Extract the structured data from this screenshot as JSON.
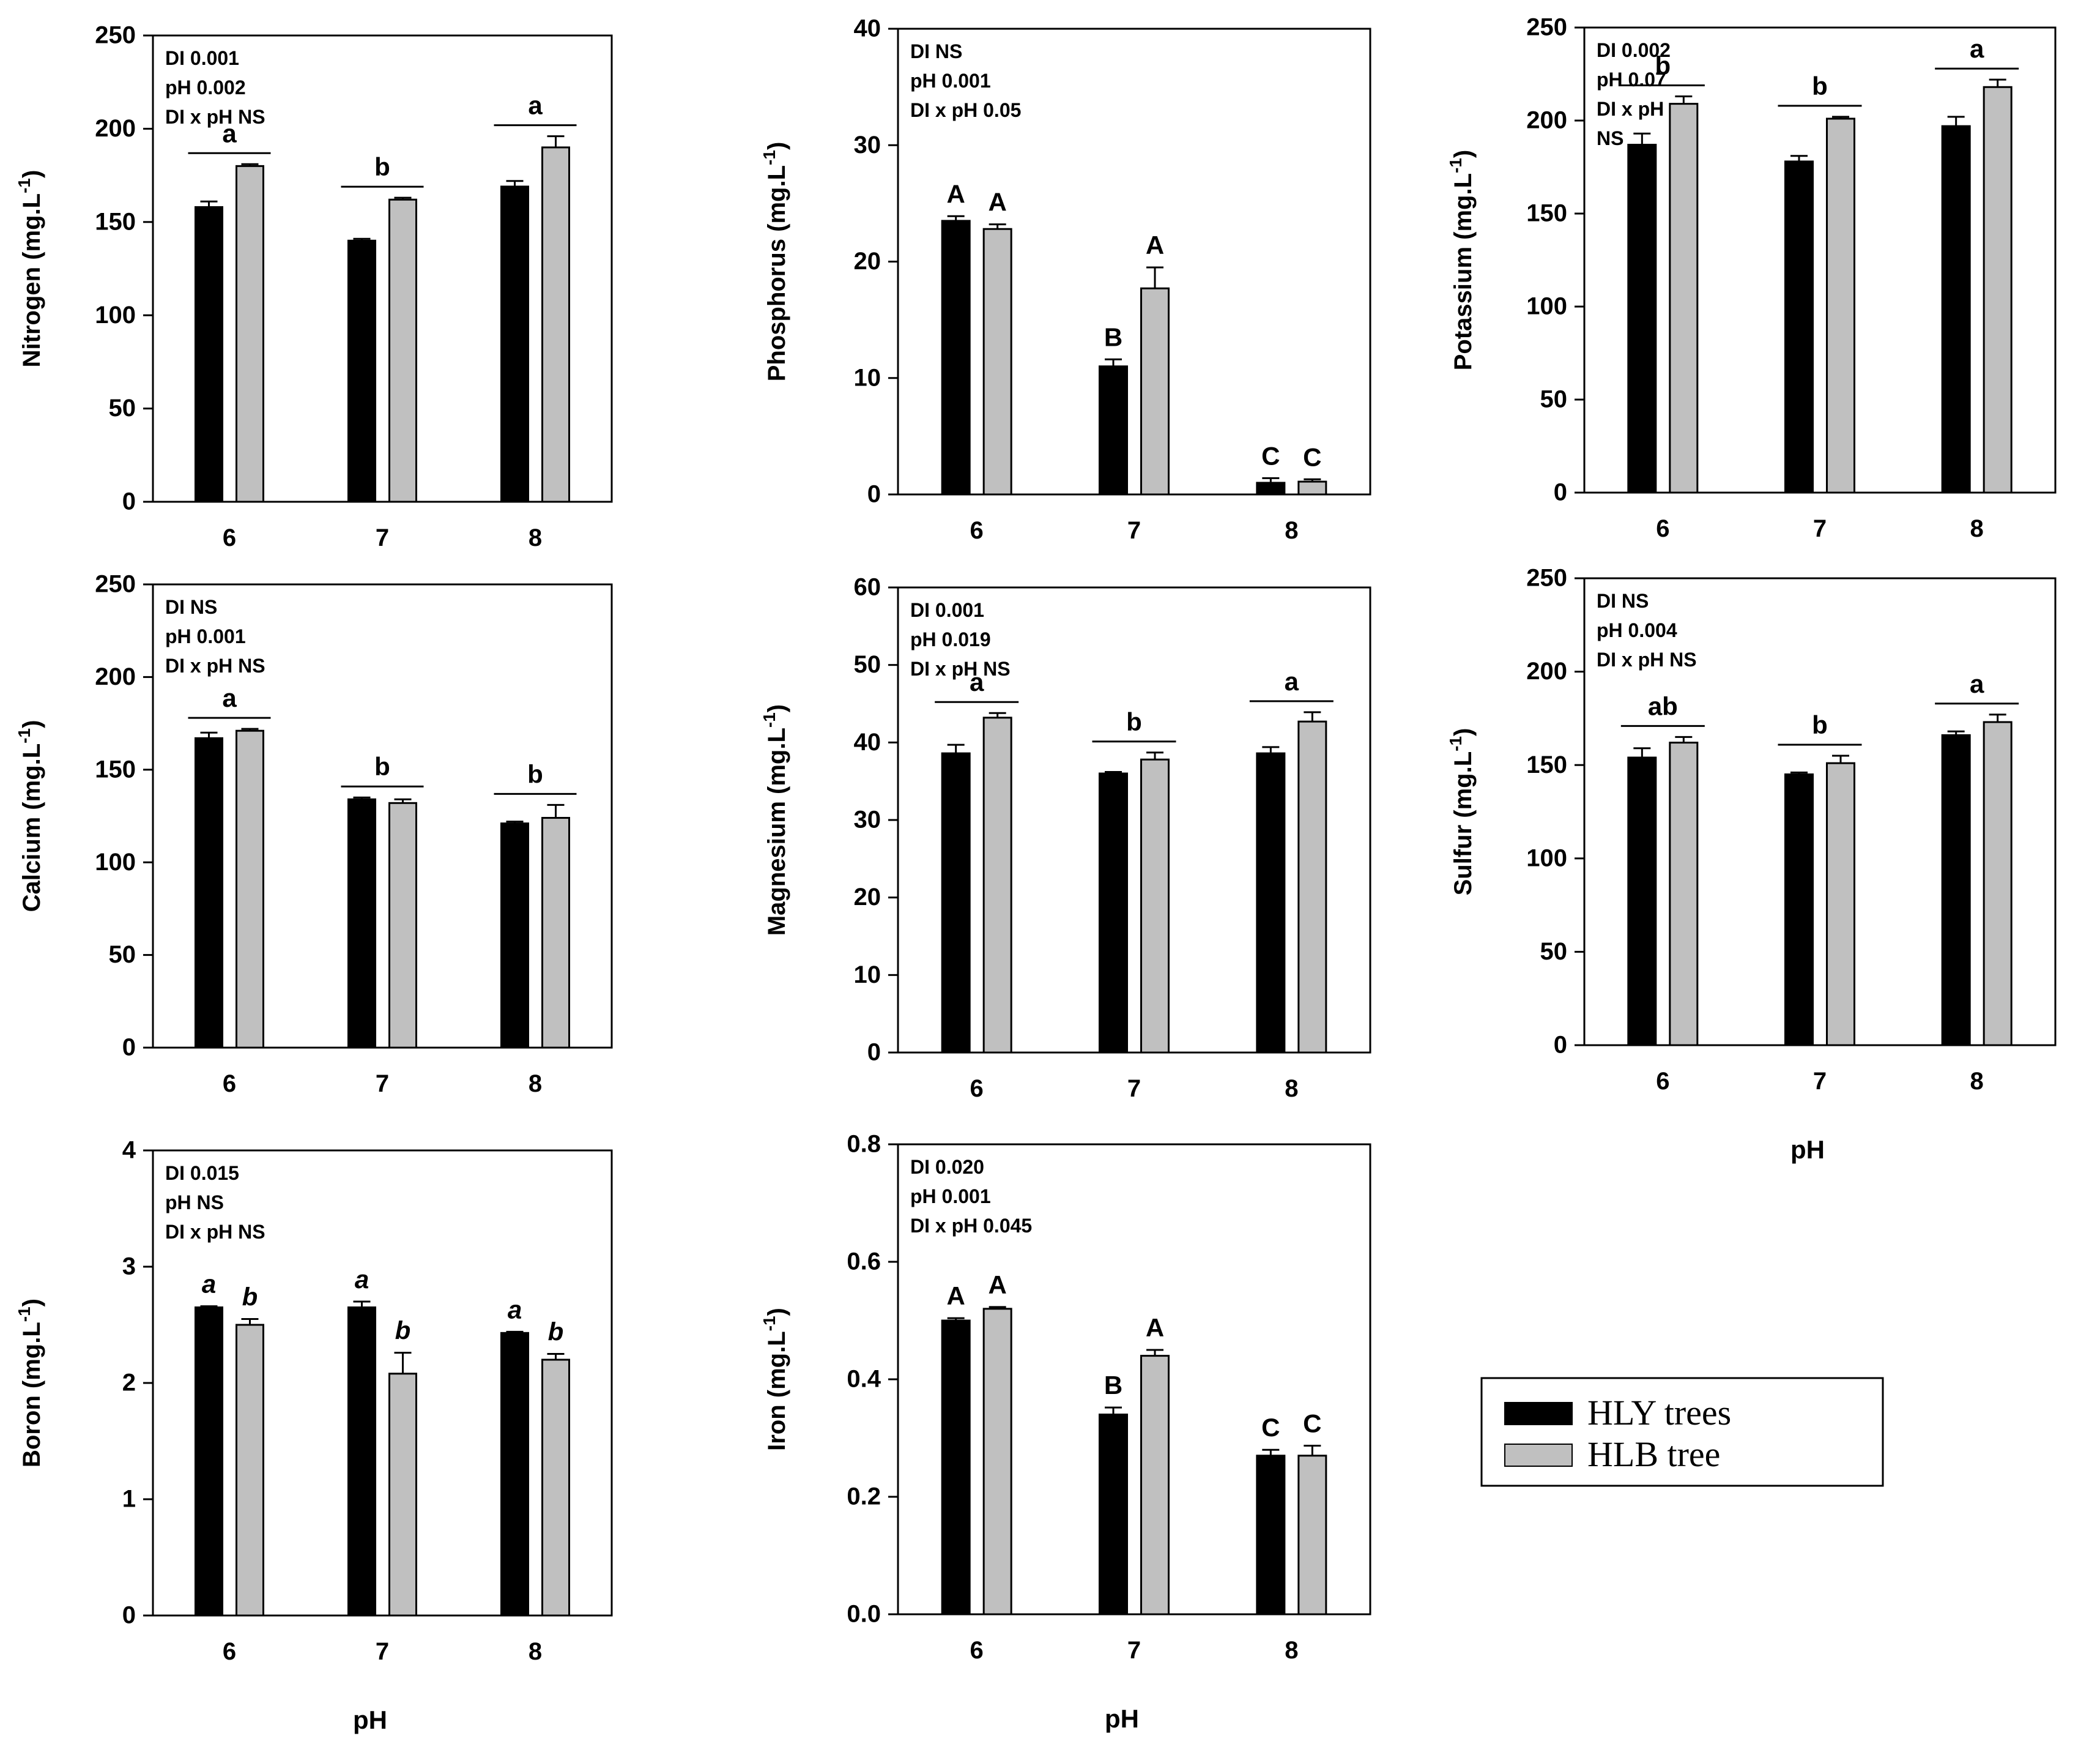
{
  "colors": {
    "hly": "#000000",
    "hlb": "#c0c0c0",
    "axis": "#000000"
  },
  "legend": {
    "items": [
      {
        "label": "HLY trees",
        "color": "#000000"
      },
      {
        "label": "HLB tree",
        "color": "#c0c0c0"
      }
    ]
  },
  "chart_data": [
    {
      "type": "bar",
      "panel": "Nitrogen",
      "ylabel": "Nitrogen (mg.L",
      "ylabel_sup": "-1",
      "ylabel_tail": ")",
      "xlabel": "",
      "ylim": [
        0,
        250
      ],
      "yticks": [
        "0",
        "50",
        "100",
        "150",
        "200",
        "250"
      ],
      "categories": [
        "6",
        "7",
        "8"
      ],
      "series": [
        {
          "name": "HLY trees",
          "values": [
            158,
            140,
            169
          ],
          "errors": [
            3,
            1,
            3
          ]
        },
        {
          "name": "HLB tree",
          "values": [
            180,
            162,
            190
          ],
          "errors": [
            1,
            1,
            6
          ]
        }
      ],
      "stats": [
        "DI  0.001",
        "pH  0.002",
        "DI x pH NS"
      ],
      "group_letters": [
        "a",
        "b",
        "a"
      ],
      "letters_italic": false
    },
    {
      "type": "bar",
      "panel": "Phosphorus",
      "ylabel": "Phosphorus (mg.L",
      "ylabel_sup": "-1",
      "ylabel_tail": ")",
      "xlabel": "",
      "ylim": [
        0,
        40
      ],
      "yticks": [
        "0",
        "10",
        "20",
        "30",
        "40"
      ],
      "categories": [
        "6",
        "7",
        "8"
      ],
      "series": [
        {
          "name": "HLY trees",
          "values": [
            23.5,
            11,
            1.0
          ],
          "errors": [
            0.4,
            0.6,
            0.4
          ]
        },
        {
          "name": "HLB tree",
          "values": [
            22.8,
            17.7,
            1.1
          ],
          "errors": [
            0.4,
            1.8,
            0.2
          ]
        }
      ],
      "stats": [
        "DI  NS",
        "pH 0.001",
        "DI x pH  0.05"
      ],
      "bar_letters": [
        [
          "A",
          "A"
        ],
        [
          "B",
          "A"
        ],
        [
          "C",
          "C"
        ]
      ]
    },
    {
      "type": "bar",
      "panel": "Potassium",
      "ylabel": "Potassium (mg.L",
      "ylabel_sup": "-1",
      "ylabel_tail": ")",
      "xlabel": "",
      "ylim": [
        0,
        250
      ],
      "yticks": [
        "0",
        "50",
        "100",
        "150",
        "200",
        "250"
      ],
      "categories": [
        "6",
        "7",
        "8"
      ],
      "series": [
        {
          "name": "HLY trees",
          "values": [
            187,
            178,
            197
          ],
          "errors": [
            6,
            3,
            5
          ]
        },
        {
          "name": "HLB tree",
          "values": [
            209,
            201,
            218
          ],
          "errors": [
            4,
            1,
            4
          ]
        }
      ],
      "stats": [
        "DI  0.002",
        "pH  0.07",
        "DI x pH",
        "NS"
      ],
      "group_letters": [
        "b",
        "b",
        "a"
      ],
      "letters_italic": false
    },
    {
      "type": "bar",
      "panel": "Calcium",
      "ylabel": "Calcium (mg.L",
      "ylabel_sup": "-1",
      "ylabel_tail": ")",
      "xlabel": "",
      "ylim": [
        0,
        250
      ],
      "yticks": [
        "0",
        "50",
        "100",
        "150",
        "200",
        "250"
      ],
      "categories": [
        "6",
        "7",
        "8"
      ],
      "series": [
        {
          "name": "HLY trees",
          "values": [
            167,
            134,
            121
          ],
          "errors": [
            3,
            1,
            1
          ]
        },
        {
          "name": "HLB tree",
          "values": [
            171,
            132,
            124
          ],
          "errors": [
            1,
            2,
            7
          ]
        }
      ],
      "stats": [
        "DI  NS",
        "pH  0.001",
        "DI x pH NS"
      ],
      "group_letters": [
        "a",
        "b",
        "b"
      ],
      "letters_italic": false
    },
    {
      "type": "bar",
      "panel": "Magnesium",
      "ylabel": "Magnesium (mg.L",
      "ylabel_sup": "-1",
      "ylabel_tail": ")",
      "xlabel": "",
      "ylim": [
        0,
        60
      ],
      "yticks": [
        "0",
        "10",
        "20",
        "30",
        "40",
        "50",
        "60"
      ],
      "categories": [
        "6",
        "7",
        "8"
      ],
      "series": [
        {
          "name": "HLY trees",
          "values": [
            38.6,
            36,
            38.6
          ],
          "errors": [
            1.1,
            0.2,
            0.8
          ]
        },
        {
          "name": "HLB tree",
          "values": [
            43.2,
            37.8,
            42.7
          ],
          "errors": [
            0.6,
            0.9,
            1.2
          ]
        }
      ],
      "stats": [
        "DI  0.001",
        "pH  0.019",
        "DI x pH NS"
      ],
      "group_letters": [
        "a",
        "b",
        "a"
      ],
      "letters_italic": false
    },
    {
      "type": "bar",
      "panel": "Sulfur",
      "ylabel": "Sulfur (mg.L",
      "ylabel_sup": "-1",
      "ylabel_tail": ")",
      "xlabel": "pH",
      "ylim": [
        0,
        250
      ],
      "yticks": [
        "0",
        "50",
        "100",
        "150",
        "200",
        "250"
      ],
      "categories": [
        "6",
        "7",
        "8"
      ],
      "series": [
        {
          "name": "HLY trees",
          "values": [
            154,
            145,
            166
          ],
          "errors": [
            5,
            1,
            2
          ]
        },
        {
          "name": "HLB tree",
          "values": [
            162,
            151,
            173
          ],
          "errors": [
            3,
            4,
            4
          ]
        }
      ],
      "stats": [
        "DI  NS",
        "pH  0.004",
        "DI x pH NS"
      ],
      "group_letters": [
        "ab",
        "b",
        "a"
      ],
      "letters_italic": false
    },
    {
      "type": "bar",
      "panel": "Boron",
      "ylabel": "Boron (mg.L",
      "ylabel_sup": "-1",
      "ylabel_tail": ")",
      "xlabel": "pH",
      "ylim": [
        0,
        4
      ],
      "yticks": [
        "0",
        "1",
        "2",
        "3",
        "4"
      ],
      "categories": [
        "6",
        "7",
        "8"
      ],
      "series": [
        {
          "name": "HLY trees",
          "values": [
            2.65,
            2.65,
            2.43
          ],
          "errors": [
            0.01,
            0.05,
            0.01
          ]
        },
        {
          "name": "HLB tree",
          "values": [
            2.5,
            2.08,
            2.2
          ],
          "errors": [
            0.05,
            0.18,
            0.05
          ]
        }
      ],
      "stats": [
        "DI  0.015",
        "pH NS",
        "DI x pH NS"
      ],
      "bar_letters": [
        [
          "a",
          "b"
        ],
        [
          "a",
          "b"
        ],
        [
          "a",
          "b"
        ]
      ],
      "letters_italic": true
    },
    {
      "type": "bar",
      "panel": "Iron",
      "ylabel": "Iron (mg.L",
      "ylabel_sup": "-1",
      "ylabel_tail": ")",
      "xlabel": "pH",
      "ylim": [
        0,
        0.8
      ],
      "yticks": [
        "0.0",
        "0.2",
        "0.4",
        "0.6",
        "0.8"
      ],
      "categories": [
        "6",
        "7",
        "8"
      ],
      "series": [
        {
          "name": "HLY trees",
          "values": [
            0.5,
            0.34,
            0.27
          ],
          "errors": [
            0.004,
            0.012,
            0.01
          ]
        },
        {
          "name": "HLB tree",
          "values": [
            0.52,
            0.44,
            0.27
          ],
          "errors": [
            0.003,
            0.01,
            0.017
          ]
        }
      ],
      "stats": [
        "DI  0.020",
        "pH  0.001",
        "DI x pH  0.045"
      ],
      "bar_letters": [
        [
          "A",
          "A"
        ],
        [
          "B",
          "A"
        ],
        [
          "C",
          "C"
        ]
      ]
    }
  ]
}
